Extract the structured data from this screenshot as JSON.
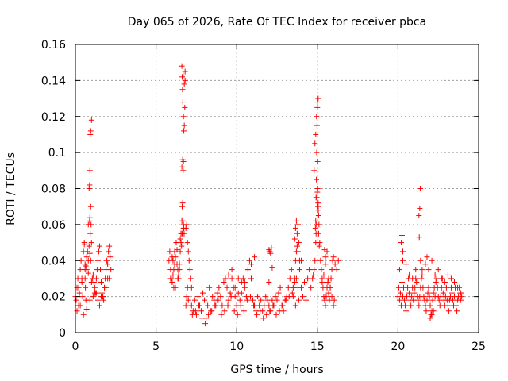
{
  "chart_data": {
    "type": "scatter",
    "title": "Day 065 of 2026, Rate Of TEC Index for receiver pbca",
    "xlabel": "GPS time / hours",
    "ylabel": "ROTI / TECUs",
    "xlim": [
      0,
      25
    ],
    "ylim": [
      0,
      0.16
    ],
    "xticks": [
      0,
      5,
      10,
      15,
      20,
      25
    ],
    "xtick_labels": [
      "0",
      "5",
      "10",
      "15",
      "20",
      "25"
    ],
    "yticks": [
      0,
      0.02,
      0.04,
      0.06,
      0.08,
      0.1,
      0.12,
      0.14,
      0.16
    ],
    "ytick_labels": [
      "0",
      "0.02",
      "0.04",
      "0.06",
      "0.08",
      "0.1",
      "0.12",
      "0.14",
      "0.16"
    ],
    "grid": true,
    "marker": "plus",
    "color": "#ff0000",
    "series": [
      {
        "x": [
          0.0,
          0.05,
          0.1,
          0.15,
          0.2,
          0.25,
          0.3,
          0.35,
          0.4,
          0.45,
          0.5,
          0.55,
          0.6,
          0.62,
          0.65,
          0.7,
          0.75,
          0.8,
          0.85,
          0.88,
          0.9,
          0.92,
          0.95,
          1.0,
          1.05,
          1.1,
          1.15,
          1.2,
          1.25,
          1.3,
          1.35,
          1.4,
          1.45,
          1.5,
          1.55,
          1.6,
          1.65,
          1.7,
          1.75,
          1.8,
          1.85,
          1.9,
          1.95,
          2.0,
          2.05,
          2.1,
          2.15,
          2.2,
          0.1,
          0.3,
          0.5,
          0.7,
          0.9,
          1.1,
          1.3,
          1.5,
          1.7,
          1.9,
          2.1,
          0.2,
          0.4,
          0.6,
          0.8,
          1.0,
          1.2,
          1.4,
          1.6,
          1.8,
          2.0,
          0.88,
          0.9,
          0.92,
          0.95,
          0.97,
          1.0,
          0.85,
          0.9,
          0.95,
          0.8,
          0.7,
          0.65,
          0.6,
          0.55
        ],
        "y": [
          0.02,
          0.018,
          0.025,
          0.03,
          0.015,
          0.022,
          0.035,
          0.04,
          0.028,
          0.02,
          0.045,
          0.05,
          0.03,
          0.025,
          0.018,
          0.035,
          0.045,
          0.06,
          0.08,
          0.082,
          0.09,
          0.11,
          0.112,
          0.118,
          0.03,
          0.032,
          0.028,
          0.025,
          0.022,
          0.03,
          0.035,
          0.04,
          0.045,
          0.048,
          0.035,
          0.028,
          0.022,
          0.02,
          0.018,
          0.025,
          0.03,
          0.035,
          0.04,
          0.038,
          0.045,
          0.048,
          0.042,
          0.035,
          0.012,
          0.015,
          0.01,
          0.013,
          0.018,
          0.02,
          0.022,
          0.015,
          0.02,
          0.025,
          0.03,
          0.025,
          0.03,
          0.035,
          0.04,
          0.028,
          0.022,
          0.018,
          0.02,
          0.025,
          0.03,
          0.062,
          0.064,
          0.055,
          0.07,
          0.06,
          0.05,
          0.048,
          0.044,
          0.04,
          0.033,
          0.042,
          0.037,
          0.038,
          0.049
        ]
      },
      {
        "x": [
          5.8,
          5.85,
          5.9,
          5.95,
          6.0,
          6.05,
          6.1,
          6.15,
          6.2,
          6.25,
          6.3,
          6.35,
          6.4,
          6.45,
          6.5,
          6.55,
          6.6,
          6.62,
          6.65,
          6.68,
          6.7,
          6.72,
          6.75,
          6.78,
          6.8,
          6.85,
          6.9,
          6.95,
          7.0,
          7.05,
          7.1,
          7.15,
          7.2,
          6.5,
          6.55,
          6.6,
          6.65,
          6.7,
          6.75,
          6.8,
          6.6,
          6.62,
          6.64,
          6.66,
          6.68,
          6.7,
          6.72,
          6.74,
          6.55,
          6.58,
          6.62,
          6.66,
          6.7,
          6.4,
          6.3,
          6.2,
          6.1,
          6.0,
          5.9,
          6.05,
          6.15,
          6.25,
          6.35,
          6.45,
          6.85,
          6.9,
          6.95,
          7.0
        ],
        "y": [
          0.04,
          0.045,
          0.035,
          0.03,
          0.028,
          0.032,
          0.025,
          0.038,
          0.042,
          0.05,
          0.046,
          0.035,
          0.03,
          0.038,
          0.045,
          0.055,
          0.062,
          0.07,
          0.072,
          0.09,
          0.095,
          0.112,
          0.115,
          0.125,
          0.14,
          0.058,
          0.06,
          0.05,
          0.045,
          0.04,
          0.035,
          0.03,
          0.025,
          0.052,
          0.055,
          0.092,
          0.096,
          0.12,
          0.138,
          0.145,
          0.148,
          0.142,
          0.135,
          0.128,
          0.143,
          0.06,
          0.058,
          0.055,
          0.05,
          0.048,
          0.055,
          0.062,
          0.058,
          0.032,
          0.038,
          0.025,
          0.035,
          0.042,
          0.03,
          0.04,
          0.045,
          0.05,
          0.03,
          0.035,
          0.015,
          0.02,
          0.025,
          0.018
        ]
      },
      {
        "x": [
          7.2,
          7.3,
          7.4,
          7.5,
          7.6,
          7.7,
          7.8,
          7.9,
          8.0,
          8.1,
          8.2,
          8.3,
          8.4,
          8.5,
          8.6,
          8.7,
          8.8,
          8.9,
          9.0,
          9.1,
          9.2,
          9.3,
          9.4,
          9.5,
          9.6,
          9.7,
          9.8,
          9.9,
          10.0,
          10.1,
          10.2,
          10.3,
          10.4,
          10.5,
          10.6,
          10.7,
          10.8,
          10.9,
          11.0,
          11.1,
          11.2,
          11.3,
          11.4,
          11.5,
          11.6,
          11.7,
          11.8,
          11.9,
          12.0,
          12.1,
          12.2,
          12.3,
          12.4,
          12.5,
          12.6,
          12.7,
          12.8,
          12.9,
          13.0,
          13.1,
          13.2,
          13.3,
          13.4,
          13.5,
          13.6,
          13.7,
          13.8,
          13.9,
          14.0,
          7.25,
          7.45,
          7.65,
          7.85,
          8.05,
          8.25,
          8.45,
          8.65,
          8.85,
          9.05,
          9.25,
          9.45,
          9.65,
          9.85,
          10.05,
          10.25,
          10.45,
          10.65,
          10.85,
          11.05,
          11.25,
          11.45,
          11.65,
          11.85,
          12.05,
          12.25,
          12.45,
          12.65,
          12.85,
          13.05,
          13.25,
          13.45,
          13.65,
          13.85,
          9.5,
          9.7,
          9.9,
          10.1,
          10.3,
          10.5,
          10.7,
          10.9,
          11.1,
          12.0,
          12.05,
          12.1,
          12.15,
          12.0,
          12.2
        ],
        "y": [
          0.015,
          0.012,
          0.018,
          0.01,
          0.02,
          0.015,
          0.012,
          0.022,
          0.018,
          0.008,
          0.015,
          0.025,
          0.012,
          0.02,
          0.018,
          0.015,
          0.022,
          0.025,
          0.02,
          0.015,
          0.028,
          0.03,
          0.025,
          0.018,
          0.022,
          0.03,
          0.025,
          0.02,
          0.015,
          0.022,
          0.018,
          0.028,
          0.03,
          0.025,
          0.02,
          0.035,
          0.04,
          0.03,
          0.018,
          0.015,
          0.012,
          0.02,
          0.015,
          0.018,
          0.012,
          0.015,
          0.02,
          0.018,
          0.015,
          0.012,
          0.018,
          0.015,
          0.02,
          0.018,
          0.022,
          0.025,
          0.015,
          0.012,
          0.018,
          0.02,
          0.025,
          0.03,
          0.035,
          0.025,
          0.028,
          0.03,
          0.025,
          0.035,
          0.04,
          0.01,
          0.012,
          0.015,
          0.008,
          0.005,
          0.01,
          0.012,
          0.015,
          0.018,
          0.01,
          0.012,
          0.015,
          0.02,
          0.012,
          0.01,
          0.015,
          0.012,
          0.018,
          0.02,
          0.015,
          0.01,
          0.012,
          0.008,
          0.01,
          0.012,
          0.015,
          0.01,
          0.012,
          0.015,
          0.018,
          0.02,
          0.022,
          0.015,
          0.018,
          0.032,
          0.035,
          0.025,
          0.03,
          0.022,
          0.028,
          0.035,
          0.038,
          0.042,
          0.046,
          0.045,
          0.044,
          0.047,
          0.028,
          0.036
        ]
      },
      {
        "x": [
          13.5,
          13.55,
          13.6,
          13.65,
          13.7,
          13.75,
          13.8,
          13.85,
          13.9,
          14.0,
          14.1,
          14.2,
          14.3,
          14.4,
          14.5,
          14.6,
          14.7,
          14.75,
          14.8,
          14.85,
          14.9,
          14.92,
          14.95,
          14.97,
          15.0,
          15.02,
          15.05,
          15.08,
          15.1,
          15.15,
          15.2,
          15.25,
          15.3,
          15.35,
          15.4,
          15.45,
          15.5,
          15.55,
          15.6,
          15.65,
          15.7,
          15.75,
          15.8,
          15.85,
          15.9,
          15.95,
          16.0,
          16.1,
          16.2,
          16.3,
          14.8,
          14.85,
          14.9,
          14.95,
          15.0,
          15.05,
          15.0,
          14.98,
          15.02,
          14.96,
          14.94,
          15.04,
          15.06,
          14.9,
          14.92,
          14.88,
          15.08,
          15.12,
          13.6,
          13.65,
          13.7,
          13.75,
          13.8,
          15.3,
          15.4,
          15.5,
          15.6,
          15.7,
          15.8,
          15.9,
          16.0,
          16.05,
          15.5,
          15.45
        ],
        "y": [
          0.02,
          0.025,
          0.03,
          0.04,
          0.045,
          0.055,
          0.06,
          0.05,
          0.04,
          0.025,
          0.02,
          0.028,
          0.018,
          0.03,
          0.035,
          0.025,
          0.03,
          0.032,
          0.035,
          0.04,
          0.05,
          0.055,
          0.06,
          0.075,
          0.078,
          0.08,
          0.072,
          0.065,
          0.06,
          0.05,
          0.04,
          0.035,
          0.03,
          0.025,
          0.02,
          0.018,
          0.015,
          0.02,
          0.025,
          0.028,
          0.022,
          0.018,
          0.025,
          0.03,
          0.035,
          0.04,
          0.042,
          0.038,
          0.035,
          0.04,
          0.09,
          0.105,
          0.11,
          0.12,
          0.128,
          0.13,
          0.125,
          0.115,
          0.095,
          0.1,
          0.085,
          0.07,
          0.068,
          0.062,
          0.075,
          0.058,
          0.055,
          0.048,
          0.052,
          0.058,
          0.062,
          0.048,
          0.045,
          0.028,
          0.032,
          0.038,
          0.045,
          0.03,
          0.025,
          0.02,
          0.015,
          0.018,
          0.042,
          0.046
        ]
      },
      {
        "x": [
          20.0,
          20.05,
          20.1,
          20.15,
          20.2,
          20.25,
          20.3,
          20.35,
          20.4,
          20.45,
          20.5,
          20.55,
          20.6,
          20.65,
          20.7,
          20.75,
          20.8,
          20.85,
          20.9,
          20.95,
          21.0,
          21.05,
          21.1,
          21.15,
          21.2,
          21.25,
          21.3,
          21.35,
          21.4,
          21.45,
          21.5,
          21.55,
          21.6,
          21.65,
          21.7,
          21.75,
          21.8,
          21.85,
          21.9,
          21.95,
          22.0,
          22.05,
          22.1,
          22.15,
          22.2,
          22.25,
          22.3,
          22.35,
          22.4,
          22.45,
          22.5,
          22.55,
          22.6,
          22.65,
          22.7,
          22.75,
          22.8,
          22.85,
          22.9,
          22.95,
          23.0,
          23.05,
          23.1,
          23.15,
          23.2,
          23.25,
          23.3,
          23.35,
          23.4,
          23.45,
          23.5,
          23.55,
          23.6,
          23.65,
          23.7,
          23.75,
          23.8,
          23.85,
          23.9,
          23.95,
          20.2,
          20.25,
          20.3,
          21.3,
          21.35,
          21.32,
          21.38,
          21.4,
          20.1,
          20.3,
          20.5,
          20.7,
          20.9,
          21.1,
          21.5,
          21.7,
          21.9,
          22.1,
          22.3,
          22.5,
          22.7,
          22.9,
          23.1,
          23.3,
          23.5,
          23.7,
          23.9,
          22.0,
          22.1,
          22.2,
          21.8
        ],
        "y": [
          0.02,
          0.025,
          0.018,
          0.022,
          0.015,
          0.028,
          0.02,
          0.025,
          0.018,
          0.015,
          0.012,
          0.02,
          0.025,
          0.03,
          0.022,
          0.018,
          0.015,
          0.02,
          0.025,
          0.018,
          0.022,
          0.025,
          0.03,
          0.028,
          0.02,
          0.018,
          0.015,
          0.02,
          0.025,
          0.03,
          0.035,
          0.025,
          0.02,
          0.018,
          0.015,
          0.012,
          0.018,
          0.022,
          0.025,
          0.02,
          0.015,
          0.01,
          0.012,
          0.018,
          0.022,
          0.025,
          0.02,
          0.028,
          0.03,
          0.025,
          0.02,
          0.018,
          0.015,
          0.02,
          0.025,
          0.03,
          0.022,
          0.018,
          0.015,
          0.02,
          0.025,
          0.018,
          0.015,
          0.012,
          0.018,
          0.02,
          0.025,
          0.022,
          0.018,
          0.015,
          0.02,
          0.025,
          0.015,
          0.012,
          0.018,
          0.02,
          0.025,
          0.022,
          0.018,
          0.02,
          0.05,
          0.054,
          0.045,
          0.065,
          0.069,
          0.053,
          0.08,
          0.04,
          0.035,
          0.04,
          0.038,
          0.032,
          0.03,
          0.035,
          0.032,
          0.038,
          0.035,
          0.04,
          0.032,
          0.035,
          0.03,
          0.028,
          0.032,
          0.03,
          0.028,
          0.025,
          0.022,
          0.008,
          0.01,
          0.012,
          0.042
        ]
      }
    ]
  }
}
